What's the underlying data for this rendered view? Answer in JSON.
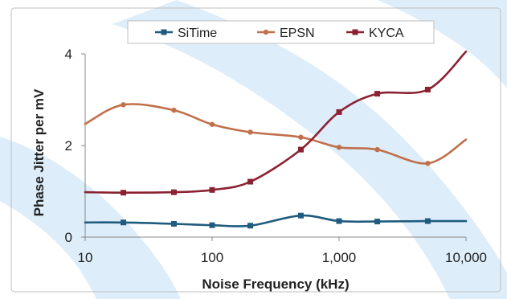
{
  "chart_data": {
    "type": "line",
    "xlabel": "Noise Frequency (kHz)",
    "ylabel": "Phase Jitter per mV",
    "x_scale": "log",
    "xlim": [
      10,
      10000
    ],
    "ylim": [
      0,
      4
    ],
    "x_ticks": [
      {
        "value": 10,
        "label": "10"
      },
      {
        "value": 100,
        "label": "100"
      },
      {
        "value": 1000,
        "label": "1,000"
      },
      {
        "value": 10000,
        "label": "10,000"
      }
    ],
    "y_ticks": [
      {
        "value": 0,
        "label": "0"
      },
      {
        "value": 2,
        "label": "2"
      },
      {
        "value": 4,
        "label": "4"
      }
    ],
    "grid": "none",
    "legend_position": "top",
    "series": [
      {
        "name": "SiTime",
        "color": "#1f5b7f",
        "marker": "square",
        "x": [
          10,
          20,
          50,
          100,
          200,
          500,
          1000,
          2000,
          5000,
          10000
        ],
        "y": [
          0.32,
          0.32,
          0.29,
          0.26,
          0.25,
          0.47,
          0.35,
          0.34,
          0.35,
          0.35
        ]
      },
      {
        "name": "EPSN",
        "color": "#c0704b",
        "marker": "circle",
        "x": [
          10,
          20,
          50,
          100,
          200,
          500,
          1000,
          2000,
          5000,
          10000
        ],
        "y": [
          2.47,
          2.89,
          2.77,
          2.46,
          2.29,
          2.18,
          1.96,
          1.91,
          1.61,
          2.13
        ]
      },
      {
        "name": "KYCA",
        "color": "#8b2231",
        "marker": "square",
        "x": [
          10,
          20,
          50,
          100,
          200,
          500,
          1000,
          2000,
          5000,
          10000
        ],
        "y": [
          0.98,
          0.97,
          0.98,
          1.03,
          1.21,
          1.91,
          2.73,
          3.13,
          3.22,
          4.05
        ]
      }
    ]
  }
}
